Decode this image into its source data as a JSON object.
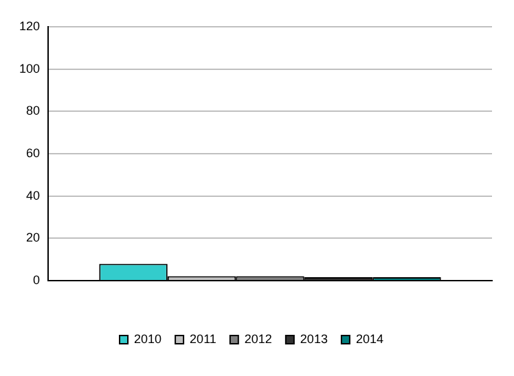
{
  "chart_data": {
    "type": "bar",
    "categories": [
      null
    ],
    "series": [
      {
        "name": "2010",
        "color": "#33cccc",
        "values": [
          8
        ]
      },
      {
        "name": "2011",
        "color": "#c0c0c0",
        "values": [
          2.2
        ]
      },
      {
        "name": "2012",
        "color": "#808080",
        "values": [
          2.2
        ]
      },
      {
        "name": "2013",
        "color": "#333333",
        "values": [
          1.7
        ]
      },
      {
        "name": "2014",
        "color": "#008080",
        "values": [
          1.7
        ]
      }
    ],
    "ylim": [
      0,
      120
    ],
    "yticks": [
      0,
      20,
      40,
      60,
      80,
      100,
      120
    ],
    "grid": "y",
    "legend": "bottom"
  }
}
